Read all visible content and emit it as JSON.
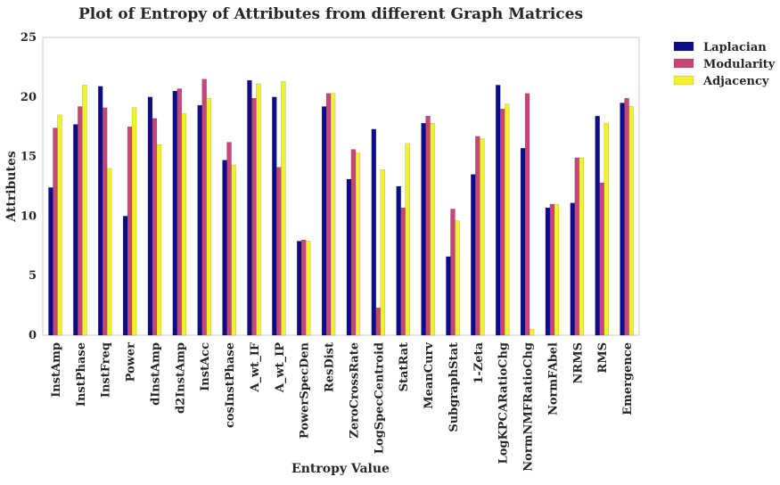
{
  "chart_data": {
    "type": "bar",
    "title": "Plot of Entropy of Attributes from different Graph Matrices",
    "xlabel": "Entropy Value",
    "ylabel": "Attributes",
    "ylim": [
      0,
      25
    ],
    "yticks": [
      0,
      5,
      10,
      15,
      20,
      25
    ],
    "grid": false,
    "legend_position": "outside-top-right",
    "categories": [
      "InstAmp",
      "InstPhase",
      "InstFreq",
      "Power",
      "dInstAmp",
      "d2InstAmp",
      "InstAcc",
      "cosInstPhase",
      "A_wt_IF",
      "A_wt_IP",
      "PowerSpecDen",
      "ResDist",
      "ZeroCrossRate",
      "LogSpecCentroid",
      "StatRat",
      "MeanCurv",
      "SubgraphStat",
      "1-Zeta",
      "LogKPCARatioChg",
      "NormNMFRatioChg",
      "NormFAbel",
      "NRMS",
      "RMS",
      "Emergence"
    ],
    "series": [
      {
        "name": "Laplacian",
        "color": "#0d0d8a",
        "values": [
          12.4,
          17.7,
          20.9,
          10.0,
          20.0,
          20.5,
          19.3,
          14.7,
          21.4,
          20.0,
          7.9,
          19.2,
          13.1,
          17.3,
          12.5,
          17.8,
          6.6,
          13.5,
          21.0,
          15.7,
          10.7,
          11.1,
          18.4,
          19.5
        ]
      },
      {
        "name": "Modularity",
        "color": "#c8457a",
        "values": [
          17.4,
          19.2,
          19.1,
          17.5,
          18.2,
          20.7,
          21.5,
          16.2,
          19.9,
          14.1,
          8.0,
          20.3,
          15.6,
          2.3,
          10.7,
          18.4,
          10.6,
          16.7,
          19.0,
          20.3,
          11.0,
          14.9,
          12.8,
          19.9
        ]
      },
      {
        "name": "Adjacency",
        "color": "#f2f22c",
        "values": [
          18.5,
          21.0,
          14.0,
          19.1,
          16.0,
          18.6,
          19.9,
          14.3,
          21.1,
          21.3,
          7.9,
          20.3,
          15.3,
          13.9,
          16.1,
          17.8,
          9.6,
          16.5,
          19.4,
          0.5,
          11.0,
          14.9,
          17.8,
          19.2
        ]
      }
    ]
  }
}
